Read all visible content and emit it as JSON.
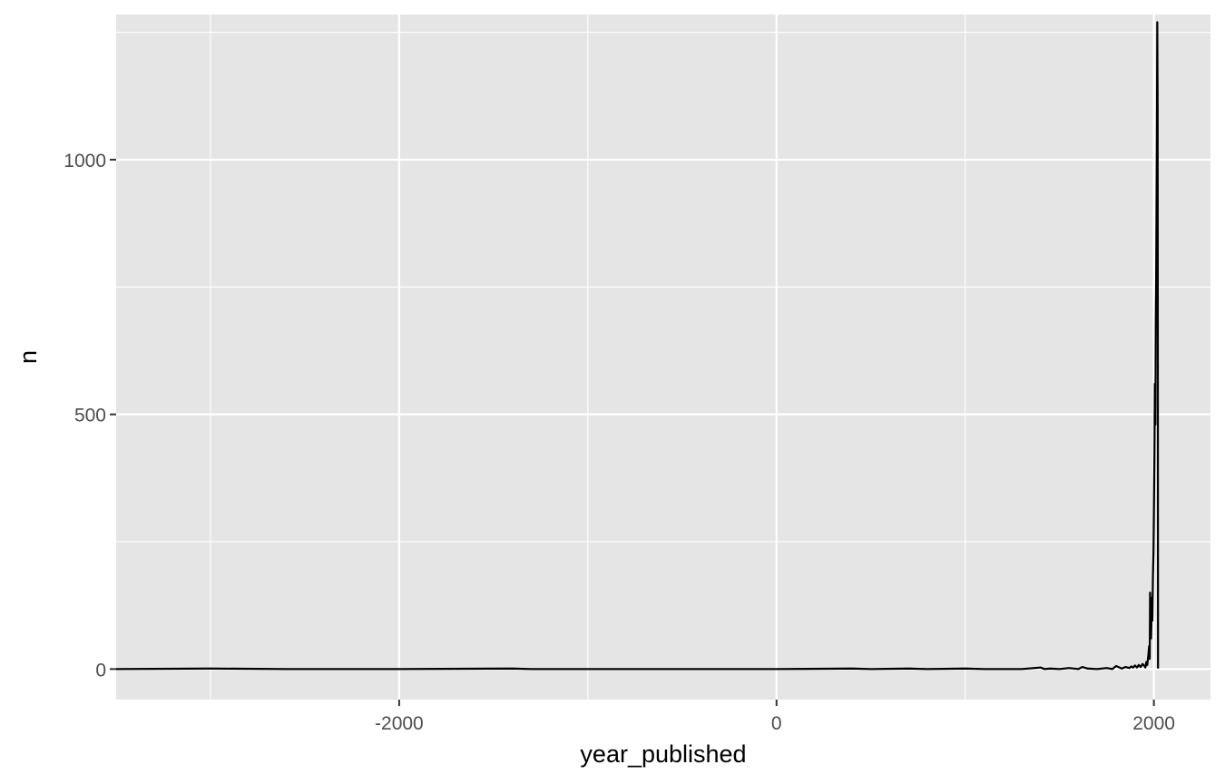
{
  "chart_data": {
    "type": "line",
    "xlabel": "year_published",
    "ylabel": "n",
    "xlim": [
      -3500,
      2300
    ],
    "ylim": [
      -60,
      1285
    ],
    "x_ticks": [
      -2000,
      0,
      2000
    ],
    "x_tick_labels": [
      "-2000",
      "0",
      "2000"
    ],
    "y_ticks": [
      0,
      500,
      1000
    ],
    "y_tick_labels": [
      "0",
      "500",
      "1000"
    ],
    "grid": true,
    "background": "#e5e5e5",
    "grid_color": "#ffffff",
    "line_color": "#000000",
    "series": [
      {
        "x": [
          -3500,
          -3000,
          -2600,
          -2000,
          -1400,
          -1300,
          -500,
          0,
          400,
          500,
          700,
          800,
          1000,
          1100,
          1300,
          1400,
          1420,
          1450,
          1500,
          1550,
          1600,
          1620,
          1650,
          1700,
          1750,
          1780,
          1790,
          1800,
          1830,
          1850,
          1870,
          1880,
          1890,
          1900,
          1910,
          1920,
          1930,
          1940,
          1950,
          1955,
          1960,
          1965,
          1970,
          1975,
          1978,
          1980,
          1985,
          1988,
          1990,
          1992,
          1995,
          1998,
          2000,
          2003,
          2005,
          2008,
          2010,
          2012,
          2014,
          2016,
          2018,
          2020,
          2022
        ],
        "y": [
          0,
          1,
          0,
          0,
          1,
          0,
          0,
          0,
          1,
          0,
          1,
          0,
          1,
          0,
          0,
          3,
          0,
          1,
          0,
          2,
          0,
          4,
          1,
          0,
          2,
          0,
          3,
          6,
          1,
          4,
          2,
          5,
          3,
          7,
          3,
          8,
          4,
          10,
          6,
          3,
          14,
          8,
          25,
          45,
          20,
          150,
          60,
          110,
          140,
          95,
          180,
          230,
          300,
          420,
          560,
          480,
          680,
          760,
          900,
          1050,
          1270,
          1100,
          1
        ]
      }
    ]
  }
}
